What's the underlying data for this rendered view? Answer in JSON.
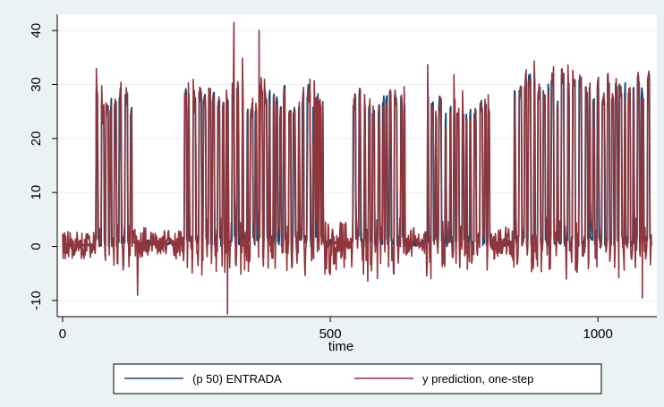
{
  "chart_data": {
    "type": "line",
    "title": "",
    "xlabel": "time",
    "ylabel": "",
    "xlim": [
      -10,
      1110
    ],
    "ylim": [
      -13,
      43
    ],
    "xticks": [
      0,
      500,
      1000
    ],
    "yticks": [
      -10,
      0,
      10,
      20,
      30,
      40
    ],
    "xtick_labels": [
      "0",
      "500",
      "1000"
    ],
    "ytick_labels": [
      "-10",
      "0",
      "10",
      "20",
      "30",
      "40"
    ],
    "grid": "horizontal",
    "legend": {
      "position": "bottom",
      "entries": [
        "(p 50) ENTRADA",
        "y prediction, one-step"
      ]
    },
    "x_range": [
      0,
      1100
    ],
    "notable_points": [
      {
        "series": "y prediction, one-step",
        "x": 320,
        "y": 41.5
      },
      {
        "series": "y prediction, one-step",
        "x": 367,
        "y": 40
      },
      {
        "series": "y prediction, one-step",
        "x": 308,
        "y": -12.5
      },
      {
        "series": "y prediction, one-step",
        "x": 1083,
        "y": -9.5
      },
      {
        "series": "y prediction, one-step",
        "x": 140,
        "y": -9
      }
    ],
    "segments": [
      {
        "x": [
          0,
          60
        ],
        "level": "low",
        "values_range": [
          0,
          1
        ]
      },
      {
        "x": [
          60,
          130
        ],
        "level": "pulses",
        "values_range": [
          0,
          30
        ]
      },
      {
        "x": [
          130,
          225
        ],
        "level": "low",
        "values_range": [
          0,
          3
        ]
      },
      {
        "x": [
          225,
          390
        ],
        "level": "pulses",
        "values_range": [
          0,
          31
        ]
      },
      {
        "x": [
          390,
          530
        ],
        "level": "pulses_then_low",
        "values_range": [
          0,
          30
        ]
      },
      {
        "x": [
          540,
          640
        ],
        "level": "pulses",
        "values_range": [
          0,
          30
        ]
      },
      {
        "x": [
          640,
          680
        ],
        "level": "low",
        "values_range": [
          0,
          3
        ]
      },
      {
        "x": [
          680,
          800
        ],
        "level": "pulses",
        "values_range": [
          0,
          29
        ]
      },
      {
        "x": [
          800,
          840
        ],
        "level": "low",
        "values_range": [
          0,
          3
        ]
      },
      {
        "x": [
          840,
          1100
        ],
        "level": "pulses",
        "values_range": [
          0,
          33
        ]
      }
    ],
    "series": [
      {
        "name": "(p 50) ENTRADA",
        "color": "#1a476f"
      },
      {
        "name": "y prediction, one-step",
        "color": "#90353b"
      }
    ]
  }
}
